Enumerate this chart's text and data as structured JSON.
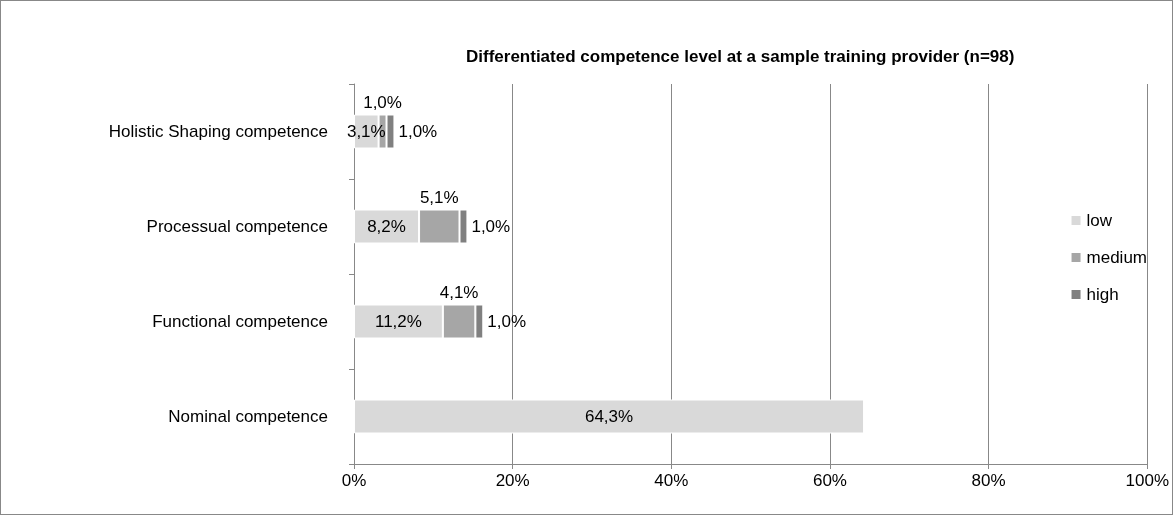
{
  "chart_data": {
    "type": "bar",
    "orientation": "horizontal",
    "stacked": true,
    "title": "Differentiated competence level at a sample training provider (n=98)",
    "categories": [
      "Holistic Shaping competence",
      "Processual competence",
      "Functional competence",
      "Nominal competence"
    ],
    "series": [
      {
        "name": "low",
        "color": "#d9d9d9",
        "values": [
          3.1,
          8.2,
          11.2,
          64.3
        ],
        "value_labels": [
          "3,1%",
          "8,2%",
          "11,2%",
          "64,3%"
        ]
      },
      {
        "name": "medium",
        "color": "#a6a6a6",
        "values": [
          1.0,
          5.1,
          4.1,
          null
        ],
        "value_labels": [
          "1,0%",
          "5,1%",
          "4,1%",
          null
        ]
      },
      {
        "name": "high",
        "color": "#808080",
        "values": [
          1.0,
          1.0,
          1.0,
          null
        ],
        "value_labels": [
          "1,0%",
          "1,0%",
          "1,0%",
          null
        ]
      }
    ],
    "xlim": [
      0,
      100
    ],
    "xticks": [
      {
        "value": 0,
        "label": "0%"
      },
      {
        "value": 20,
        "label": "20%"
      },
      {
        "value": 40,
        "label": "40%"
      },
      {
        "value": 60,
        "label": "60%"
      },
      {
        "value": 80,
        "label": "80%"
      },
      {
        "value": 100,
        "label": "100%"
      }
    ],
    "grid": "x",
    "legend": "right"
  }
}
